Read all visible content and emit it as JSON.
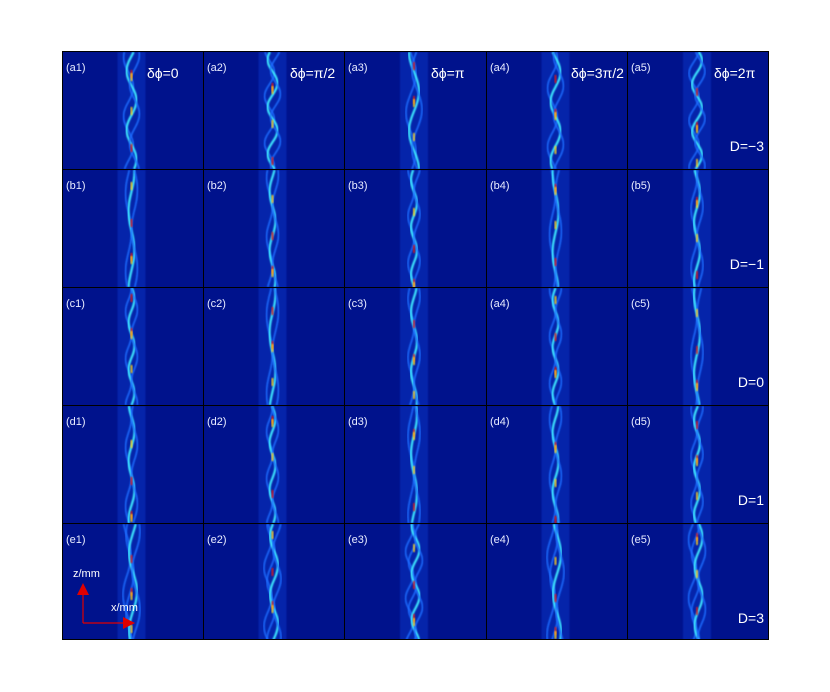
{
  "rows": [
    {
      "row": "a",
      "labels": [
        "(a1)",
        "(a2)",
        "(a3)",
        "(a4)",
        "(a5)"
      ],
      "d_label": "D=−3"
    },
    {
      "row": "b",
      "labels": [
        "(b1)",
        "(b2)",
        "(b3)",
        "(b4)",
        "(b5)"
      ],
      "d_label": "D=−1"
    },
    {
      "row": "c",
      "labels": [
        "(c1)",
        "(c2)",
        "(c3)",
        "(a4)",
        "(c5)"
      ],
      "d_label": "D=0"
    },
    {
      "row": "d",
      "labels": [
        "(d1)",
        "(d2)",
        "(d3)",
        "(d4)",
        "(d5)"
      ],
      "d_label": "D=1"
    },
    {
      "row": "e",
      "labels": [
        "(e1)",
        "(e2)",
        "(e3)",
        "(e4)",
        "(e5)"
      ],
      "d_label": "D=3"
    }
  ],
  "phase_labels": [
    "δϕ=0",
    "δϕ=π/2",
    "δϕ=π",
    "δϕ=3π/2",
    "δϕ=2π"
  ],
  "axis": {
    "z_label": "z/mm",
    "x_label": "x/mm"
  },
  "colors": {
    "background": "#00138f",
    "axis_arrow": "#e00000",
    "beam_low": "#1e6cff",
    "beam_mid": "#3ee6ff",
    "beam_high": "#ffd21a",
    "beam_peak": "#d91a1a"
  }
}
